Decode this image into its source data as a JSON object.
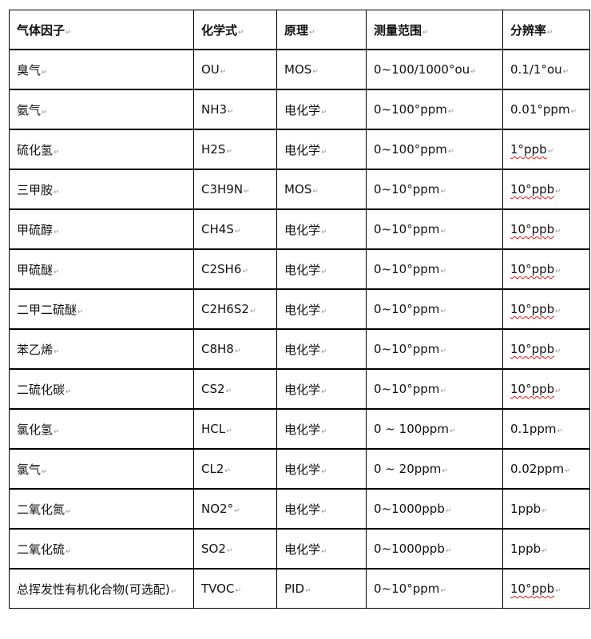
{
  "headers": [
    "气体因子",
    "化学式",
    "原理",
    "测量范围",
    "分辨率"
  ],
  "rows": [
    [
      "臭气",
      "OU",
      "MOS",
      "0~100/1000°ou",
      "0.1/1°ou"
    ],
    [
      "氨气",
      "NH3",
      "电化学",
      "0~100°ppm",
      "0.01°ppm"
    ],
    [
      "硫化氢",
      "H2S",
      "电化学",
      "0~100°ppm",
      "1°ppb"
    ],
    [
      "三甲胺",
      "C3H9N",
      "MOS",
      "0~10°ppm",
      "10°ppb"
    ],
    [
      "甲硫醇",
      "CH4S",
      "电化学",
      "0~10°ppm",
      "10°ppb"
    ],
    [
      "甲硫醚",
      "C2SH6",
      "电化学",
      "0~10°ppm",
      "10°ppb"
    ],
    [
      "二甲二硫醚",
      "C2H6S2",
      "电化学",
      "0~10°ppm",
      "10°ppb"
    ],
    [
      "苯乙烯",
      "C8H8",
      "电化学",
      "0~10°ppm",
      "10°ppb"
    ],
    [
      "二硫化碳",
      "CS2",
      "电化学",
      "0~10°ppm",
      "10°ppb"
    ],
    [
      "氯化氢",
      "HCL",
      "电化学",
      "0 ~ 100ppm",
      "0.1ppm"
    ],
    [
      "氯气",
      "CL2",
      "电化学",
      "0 ~ 20ppm",
      "0.02ppm"
    ],
    [
      "二氧化氮",
      "NO2°",
      "电化学",
      "0~1000ppb",
      "1ppb"
    ],
    [
      "二氧化硫",
      "SO2",
      "电化学",
      "0~1000ppb",
      "1ppb"
    ],
    [
      "总挥发性有机化合物(可选配)",
      "TVOC",
      "PID",
      "0~10°ppm",
      "10°ppb"
    ]
  ],
  "spellcheck_flagged_rows": [
    2,
    3,
    4,
    5,
    6,
    7,
    8,
    13
  ],
  "spellcheck_color": "#d02020"
}
